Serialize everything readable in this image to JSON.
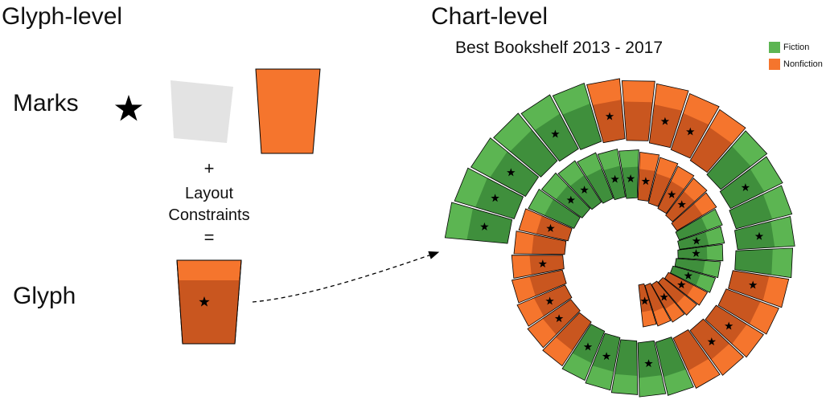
{
  "titles": {
    "glyph_level": "Glyph-level",
    "chart_level": "Chart-level"
  },
  "labels": {
    "marks": "Marks",
    "glyph": "Glyph"
  },
  "formula": {
    "plus": "+",
    "line1": "Layout",
    "line2": "Constraints",
    "equals": "="
  },
  "chart": {
    "title": "Best Bookshelf 2013 - 2017"
  },
  "legend": [
    {
      "name": "Fiction",
      "color": "#5cb552"
    },
    {
      "name": "Nonfiction",
      "color": "#f5752d"
    }
  ],
  "colors": {
    "fiction": "#5cb552",
    "fiction_dark": "#3f8f3c",
    "nonfiction": "#f5752d",
    "nonfiction_dark": "#c9561f",
    "mark_gray": "#e3e3e3",
    "star": "#000000"
  },
  "icons": {
    "star": "star-icon",
    "arrow": "dashed-arrow-icon"
  },
  "chart_data": {
    "type": "spiral",
    "title": "Best Bookshelf 2013 - 2017",
    "categories": [
      "Fiction",
      "Nonfiction"
    ],
    "books": [
      {
        "genre": "Fiction",
        "star": true
      },
      {
        "genre": "Fiction",
        "star": true
      },
      {
        "genre": "Fiction",
        "star": true
      },
      {
        "genre": "Fiction",
        "star": false
      },
      {
        "genre": "Fiction",
        "star": true
      },
      {
        "genre": "Fiction",
        "star": false
      },
      {
        "genre": "Nonfiction",
        "star": true
      },
      {
        "genre": "Nonfiction",
        "star": false
      },
      {
        "genre": "Nonfiction",
        "star": true
      },
      {
        "genre": "Nonfiction",
        "star": true
      },
      {
        "genre": "Nonfiction",
        "star": false
      },
      {
        "genre": "Fiction",
        "star": false
      },
      {
        "genre": "Fiction",
        "star": true
      },
      {
        "genre": "Fiction",
        "star": false
      },
      {
        "genre": "Fiction",
        "star": true
      },
      {
        "genre": "Fiction",
        "star": false
      },
      {
        "genre": "Nonfiction",
        "star": true
      },
      {
        "genre": "Nonfiction",
        "star": false
      },
      {
        "genre": "Nonfiction",
        "star": true
      },
      {
        "genre": "Nonfiction",
        "star": true
      },
      {
        "genre": "Nonfiction",
        "star": false
      },
      {
        "genre": "Fiction",
        "star": false
      },
      {
        "genre": "Fiction",
        "star": true
      },
      {
        "genre": "Fiction",
        "star": false
      },
      {
        "genre": "Fiction",
        "star": true
      },
      {
        "genre": "Fiction",
        "star": true
      },
      {
        "genre": "Nonfiction",
        "star": false
      },
      {
        "genre": "Nonfiction",
        "star": true
      },
      {
        "genre": "Nonfiction",
        "star": true
      },
      {
        "genre": "Nonfiction",
        "star": false
      },
      {
        "genre": "Nonfiction",
        "star": true
      },
      {
        "genre": "Nonfiction",
        "star": false
      },
      {
        "genre": "Nonfiction",
        "star": true
      },
      {
        "genre": "Fiction",
        "star": false
      },
      {
        "genre": "Fiction",
        "star": true
      },
      {
        "genre": "Fiction",
        "star": true
      },
      {
        "genre": "Fiction",
        "star": false
      },
      {
        "genre": "Fiction",
        "star": true
      },
      {
        "genre": "Fiction",
        "star": true
      },
      {
        "genre": "Nonfiction",
        "star": true
      },
      {
        "genre": "Nonfiction",
        "star": false
      },
      {
        "genre": "Nonfiction",
        "star": true
      },
      {
        "genre": "Nonfiction",
        "star": true
      },
      {
        "genre": "Nonfiction",
        "star": false
      },
      {
        "genre": "Fiction",
        "star": false
      },
      {
        "genre": "Fiction",
        "star": true
      },
      {
        "genre": "Fiction",
        "star": true
      },
      {
        "genre": "Fiction",
        "star": false
      },
      {
        "genre": "Fiction",
        "star": true
      },
      {
        "genre": "Nonfiction",
        "star": true
      },
      {
        "genre": "Nonfiction",
        "star": false
      },
      {
        "genre": "Nonfiction",
        "star": true
      },
      {
        "genre": "Nonfiction",
        "star": false
      },
      {
        "genre": "Nonfiction",
        "star": true
      }
    ]
  }
}
